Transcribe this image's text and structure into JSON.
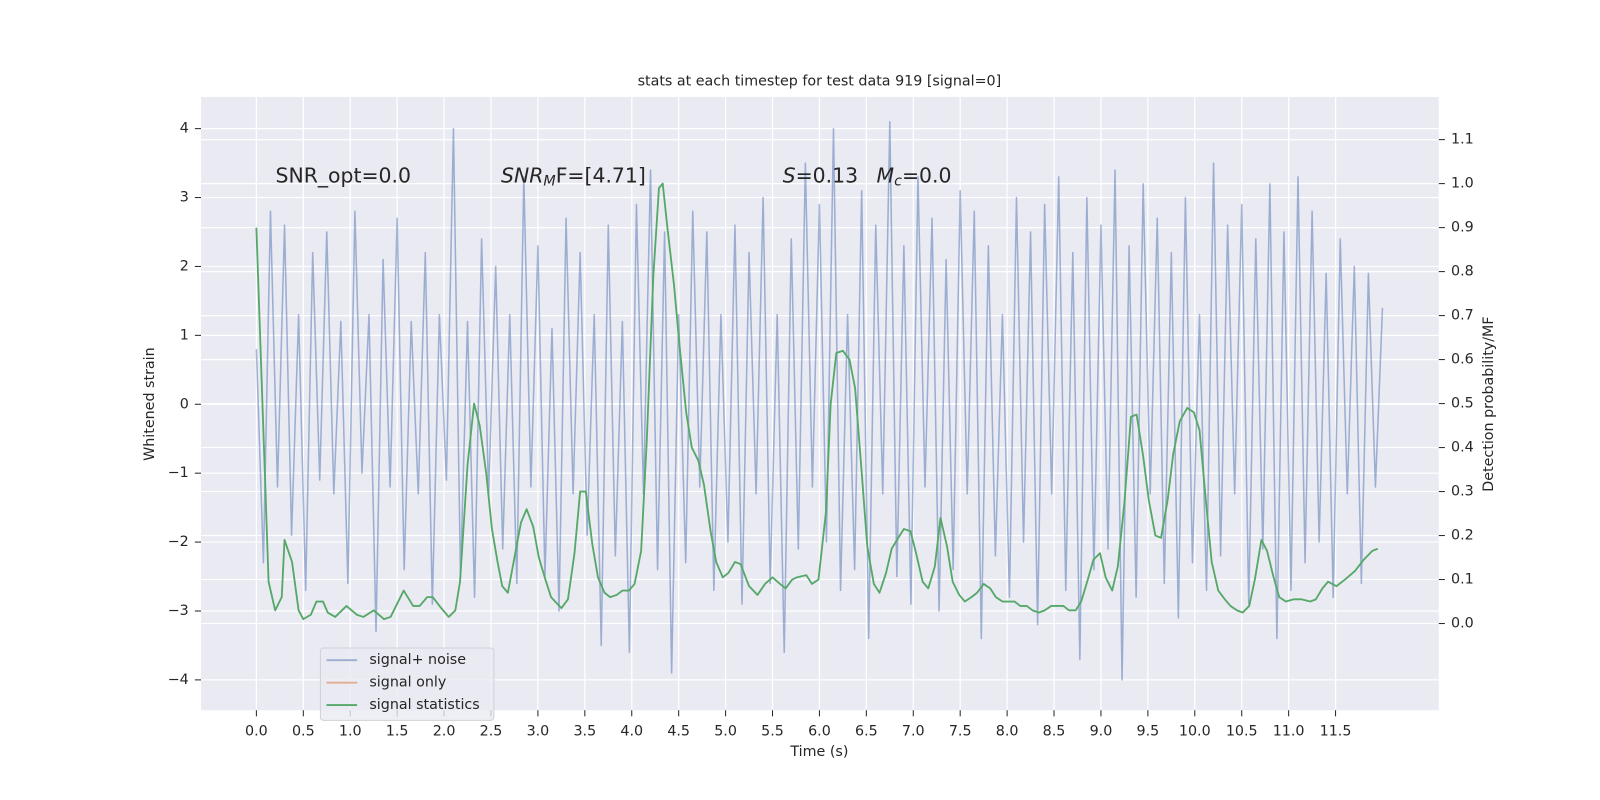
{
  "chart_data": {
    "type": "line",
    "title": "stats at each timestep for test data 919 [signal=0]",
    "xlabel": "Time (s)",
    "ylabel": "Whitened strain",
    "y2label": "Detection probability/MF",
    "annotations": [
      "SNR_opt=0.0",
      {
        "main": "SNR",
        "sub": "M",
        "rest": "F=[4.71]"
      },
      {
        "main": "S",
        "rest": "=0.13"
      },
      {
        "main": "M",
        "sub": "c",
        "rest": "=0.0"
      }
    ],
    "xlim": [
      -0.59,
      12.6
    ],
    "ylim": [
      -4.44,
      4.46
    ],
    "y2lim": [
      -0.197,
      1.197
    ],
    "xticks": [
      {
        "value": 0,
        "label": "0.0"
      },
      0.5,
      {
        "value": 1,
        "label": "1.0"
      },
      1.5,
      {
        "value": 2,
        "label": "2.0"
      },
      2.5,
      {
        "value": 3,
        "label": "3.0"
      },
      3.5,
      {
        "value": 4,
        "label": "4.0"
      },
      4.5,
      {
        "value": 5,
        "label": "5.0"
      },
      5.5,
      {
        "value": 6,
        "label": "6.0"
      },
      6.5,
      {
        "value": 7,
        "label": "7.0"
      },
      7.5,
      {
        "value": 8,
        "label": "8.0"
      },
      8.5,
      {
        "value": 9,
        "label": "9.0"
      },
      9.5,
      {
        "value": 10,
        "label": "10.0"
      },
      10.5,
      {
        "value": 11,
        "label": "11.0"
      },
      11.5
    ],
    "yticks": [
      {
        "value": -4,
        "label": "−4"
      },
      {
        "value": -3,
        "label": "−3"
      },
      {
        "value": -2,
        "label": "−2"
      },
      {
        "value": -1,
        "label": "−1"
      },
      0,
      1,
      2,
      3,
      4
    ],
    "y2ticks": [
      {
        "value": 0,
        "label": "0.0"
      },
      0.1,
      0.2,
      0.3,
      0.4,
      0.5,
      0.6,
      0.7,
      0.8,
      0.9,
      {
        "value": 1,
        "label": "1.0"
      },
      1.1
    ],
    "grid": true,
    "legend": "lower left",
    "series": [
      {
        "name": "signal+ noise",
        "color": "#4c72b0",
        "alpha": 0.5,
        "x": [
          0,
          0.075,
          0.15,
          0.225,
          0.3,
          0.375,
          0.45,
          0.525,
          0.6,
          0.675,
          0.75,
          0.825,
          0.9,
          0.975,
          1.05,
          1.125,
          1.2,
          1.275,
          1.35,
          1.425,
          1.5,
          1.575,
          1.65,
          1.725,
          1.8,
          1.875,
          1.95,
          2.025,
          2.1,
          2.175,
          2.25,
          2.325,
          2.4,
          2.475,
          2.55,
          2.625,
          2.7,
          2.775,
          2.85,
          2.925,
          3,
          3.075,
          3.15,
          3.225,
          3.3,
          3.375,
          3.45,
          3.525,
          3.6,
          3.675,
          3.75,
          3.825,
          3.9,
          3.975,
          4.05,
          4.125,
          4.2,
          4.275,
          4.35,
          4.425,
          4.5,
          4.575,
          4.65,
          4.725,
          4.8,
          4.875,
          4.95,
          5.025,
          5.1,
          5.175,
          5.25,
          5.325,
          5.4,
          5.475,
          5.55,
          5.625,
          5.7,
          5.775,
          5.85,
          5.925,
          6,
          6.075,
          6.15,
          6.225,
          6.3,
          6.375,
          6.45,
          6.525,
          6.6,
          6.675,
          6.75,
          6.825,
          6.9,
          6.975,
          7.05,
          7.125,
          7.2,
          7.275,
          7.35,
          7.425,
          7.5,
          7.575,
          7.65,
          7.725,
          7.8,
          7.875,
          7.95,
          8.025,
          8.1,
          8.175,
          8.25,
          8.325,
          8.4,
          8.475,
          8.55,
          8.625,
          8.7,
          8.775,
          8.85,
          8.925,
          9,
          9.075,
          9.15,
          9.225,
          9.3,
          9.375,
          9.45,
          9.525,
          9.6,
          9.675,
          9.75,
          9.825,
          9.9,
          9.975,
          10.05,
          10.125,
          10.2,
          10.275,
          10.35,
          10.425,
          10.5,
          10.575,
          10.65,
          10.725,
          10.8,
          10.875,
          10.95,
          11.025,
          11.1,
          11.175,
          11.25,
          11.325,
          11.4,
          11.475,
          11.55,
          11.625,
          11.7,
          11.775,
          11.85,
          11.925,
          12
        ],
        "values": [
          0.8,
          -2.3,
          2.8,
          -1.2,
          2.6,
          -1.9,
          1.3,
          -2.7,
          2.2,
          -1.1,
          2.5,
          -1.3,
          1.2,
          -2.6,
          2.8,
          -1.0,
          1.3,
          -3.3,
          2.1,
          -1.2,
          2.7,
          -2.4,
          1.2,
          -1.3,
          2.2,
          -2.9,
          1.3,
          -1.1,
          4.0,
          -2.5,
          1.2,
          -2.8,
          2.4,
          -1.3,
          2.0,
          -2.1,
          1.3,
          -2.6,
          3.3,
          -1.2,
          2.3,
          -2.5,
          1.1,
          -3.0,
          2.7,
          -1.3,
          2.2,
          -1.9,
          1.3,
          -3.5,
          2.6,
          -2.2,
          1.2,
          -3.6,
          2.9,
          -1.3,
          3.4,
          -2.4,
          2.5,
          -3.9,
          1.3,
          -2.3,
          2.8,
          -1.2,
          2.5,
          -2.7,
          1.3,
          -2.0,
          2.6,
          -2.9,
          2.2,
          -1.3,
          3.0,
          -2.6,
          1.3,
          -3.6,
          2.4,
          -2.1,
          3.5,
          -1.2,
          2.9,
          -2.0,
          4.0,
          -2.7,
          1.3,
          -2.4,
          3.1,
          -3.4,
          2.6,
          -1.3,
          4.1,
          -2.5,
          2.3,
          -2.9,
          3.3,
          -1.2,
          2.7,
          -3.0,
          2.1,
          -2.4,
          3.1,
          -1.3,
          2.8,
          -3.4,
          2.3,
          -2.2,
          1.3,
          -2.8,
          3.0,
          -2.0,
          2.5,
          -3.2,
          2.9,
          -1.3,
          3.3,
          -2.7,
          2.2,
          -3.7,
          3.0,
          -2.4,
          2.6,
          -2.1,
          3.4,
          -4.0,
          2.3,
          -2.8,
          3.2,
          -1.3,
          2.7,
          -2.6,
          2.2,
          -3.1,
          3.0,
          -2.3,
          1.3,
          -2.7,
          3.5,
          -2.2,
          2.6,
          -1.3,
          2.9,
          -2.9,
          2.4,
          -2.1,
          3.2,
          -3.4,
          2.5,
          -2.7,
          3.3,
          -2.3,
          2.8,
          -2.0,
          1.9,
          -2.8,
          2.4,
          -1.3,
          2.0,
          -2.6,
          1.9,
          -1.2,
          1.4
        ]
      },
      {
        "name": "signal only",
        "color": "#dd8452",
        "alpha": 0.6,
        "x": [],
        "values": []
      },
      {
        "name": "signal statistics",
        "color": "#55a868",
        "alpha": 1,
        "axis": "y2",
        "x": [
          0,
          0.13,
          0.2,
          0.27,
          0.3,
          0.38,
          0.45,
          0.5,
          0.58,
          0.64,
          0.71,
          0.76,
          0.84,
          0.96,
          1.07,
          1.14,
          1.25,
          1.36,
          1.43,
          1.57,
          1.67,
          1.74,
          1.82,
          1.88,
          1.97,
          2.05,
          2.12,
          2.17,
          2.25,
          2.32,
          2.38,
          2.45,
          2.51,
          2.57,
          2.62,
          2.68,
          2.75,
          2.82,
          2.88,
          2.95,
          3.01,
          3.08,
          3.14,
          3.25,
          3.32,
          3.39,
          3.45,
          3.51,
          3.58,
          3.64,
          3.71,
          3.77,
          3.84,
          3.9,
          3.97,
          4.03,
          4.1,
          4.16,
          4.23,
          4.29,
          4.33,
          4.38,
          4.45,
          4.51,
          4.58,
          4.64,
          4.71,
          4.77,
          4.84,
          4.9,
          4.97,
          5.03,
          5.1,
          5.16,
          5.25,
          5.34,
          5.42,
          5.5,
          5.58,
          5.64,
          5.71,
          5.76,
          5.86,
          5.92,
          5.99,
          6.07,
          6.12,
          6.18,
          6.25,
          6.32,
          6.38,
          6.45,
          6.51,
          6.58,
          6.64,
          6.71,
          6.77,
          6.84,
          6.9,
          6.97,
          7.03,
          7.1,
          7.16,
          7.23,
          7.29,
          7.36,
          7.42,
          7.49,
          7.55,
          7.62,
          7.68,
          7.75,
          7.82,
          7.88,
          7.95,
          8.01,
          8.08,
          8.14,
          8.21,
          8.27,
          8.34,
          8.4,
          8.47,
          8.53,
          8.6,
          8.66,
          8.73,
          8.79,
          8.86,
          8.92,
          8.99,
          9.05,
          9.12,
          9.18,
          9.25,
          9.32,
          9.38,
          9.45,
          9.51,
          9.58,
          9.64,
          9.71,
          9.77,
          9.84,
          9.92,
          9.99,
          10.05,
          10.12,
          10.18,
          10.25,
          10.32,
          10.38,
          10.45,
          10.51,
          10.58,
          10.64,
          10.71,
          10.77,
          10.84,
          10.9,
          10.97,
          11.05,
          11.14,
          11.23,
          11.29,
          11.36,
          11.42,
          11.51,
          11.6,
          11.71,
          11.8,
          11.89,
          11.95
        ],
        "values": [
          0.9,
          0.095,
          0.03,
          0.06,
          0.19,
          0.14,
          0.03,
          0.01,
          0.02,
          0.05,
          0.05,
          0.025,
          0.015,
          0.04,
          0.02,
          0.015,
          0.03,
          0.01,
          0.015,
          0.075,
          0.04,
          0.04,
          0.06,
          0.06,
          0.035,
          0.015,
          0.03,
          0.095,
          0.36,
          0.5,
          0.45,
          0.34,
          0.215,
          0.14,
          0.085,
          0.07,
          0.15,
          0.23,
          0.26,
          0.22,
          0.15,
          0.1,
          0.06,
          0.035,
          0.055,
          0.16,
          0.3,
          0.3,
          0.18,
          0.105,
          0.07,
          0.06,
          0.065,
          0.075,
          0.075,
          0.09,
          0.165,
          0.415,
          0.79,
          0.99,
          1.0,
          0.9,
          0.77,
          0.63,
          0.48,
          0.4,
          0.37,
          0.315,
          0.21,
          0.14,
          0.105,
          0.115,
          0.14,
          0.135,
          0.085,
          0.065,
          0.09,
          0.105,
          0.09,
          0.08,
          0.1,
          0.105,
          0.11,
          0.09,
          0.1,
          0.255,
          0.5,
          0.615,
          0.62,
          0.6,
          0.535,
          0.345,
          0.175,
          0.09,
          0.07,
          0.115,
          0.17,
          0.195,
          0.215,
          0.21,
          0.16,
          0.095,
          0.08,
          0.13,
          0.24,
          0.175,
          0.095,
          0.065,
          0.05,
          0.06,
          0.07,
          0.09,
          0.08,
          0.06,
          0.05,
          0.05,
          0.05,
          0.04,
          0.04,
          0.03,
          0.025,
          0.03,
          0.04,
          0.04,
          0.04,
          0.03,
          0.03,
          0.05,
          0.1,
          0.145,
          0.16,
          0.105,
          0.075,
          0.13,
          0.275,
          0.47,
          0.475,
          0.38,
          0.28,
          0.2,
          0.195,
          0.28,
          0.385,
          0.46,
          0.49,
          0.48,
          0.44,
          0.275,
          0.14,
          0.075,
          0.055,
          0.04,
          0.03,
          0.025,
          0.04,
          0.1,
          0.19,
          0.165,
          0.105,
          0.06,
          0.05,
          0.055,
          0.055,
          0.05,
          0.055,
          0.08,
          0.095,
          0.085,
          0.1,
          0.12,
          0.145,
          0.165,
          0.17
        ]
      }
    ]
  }
}
